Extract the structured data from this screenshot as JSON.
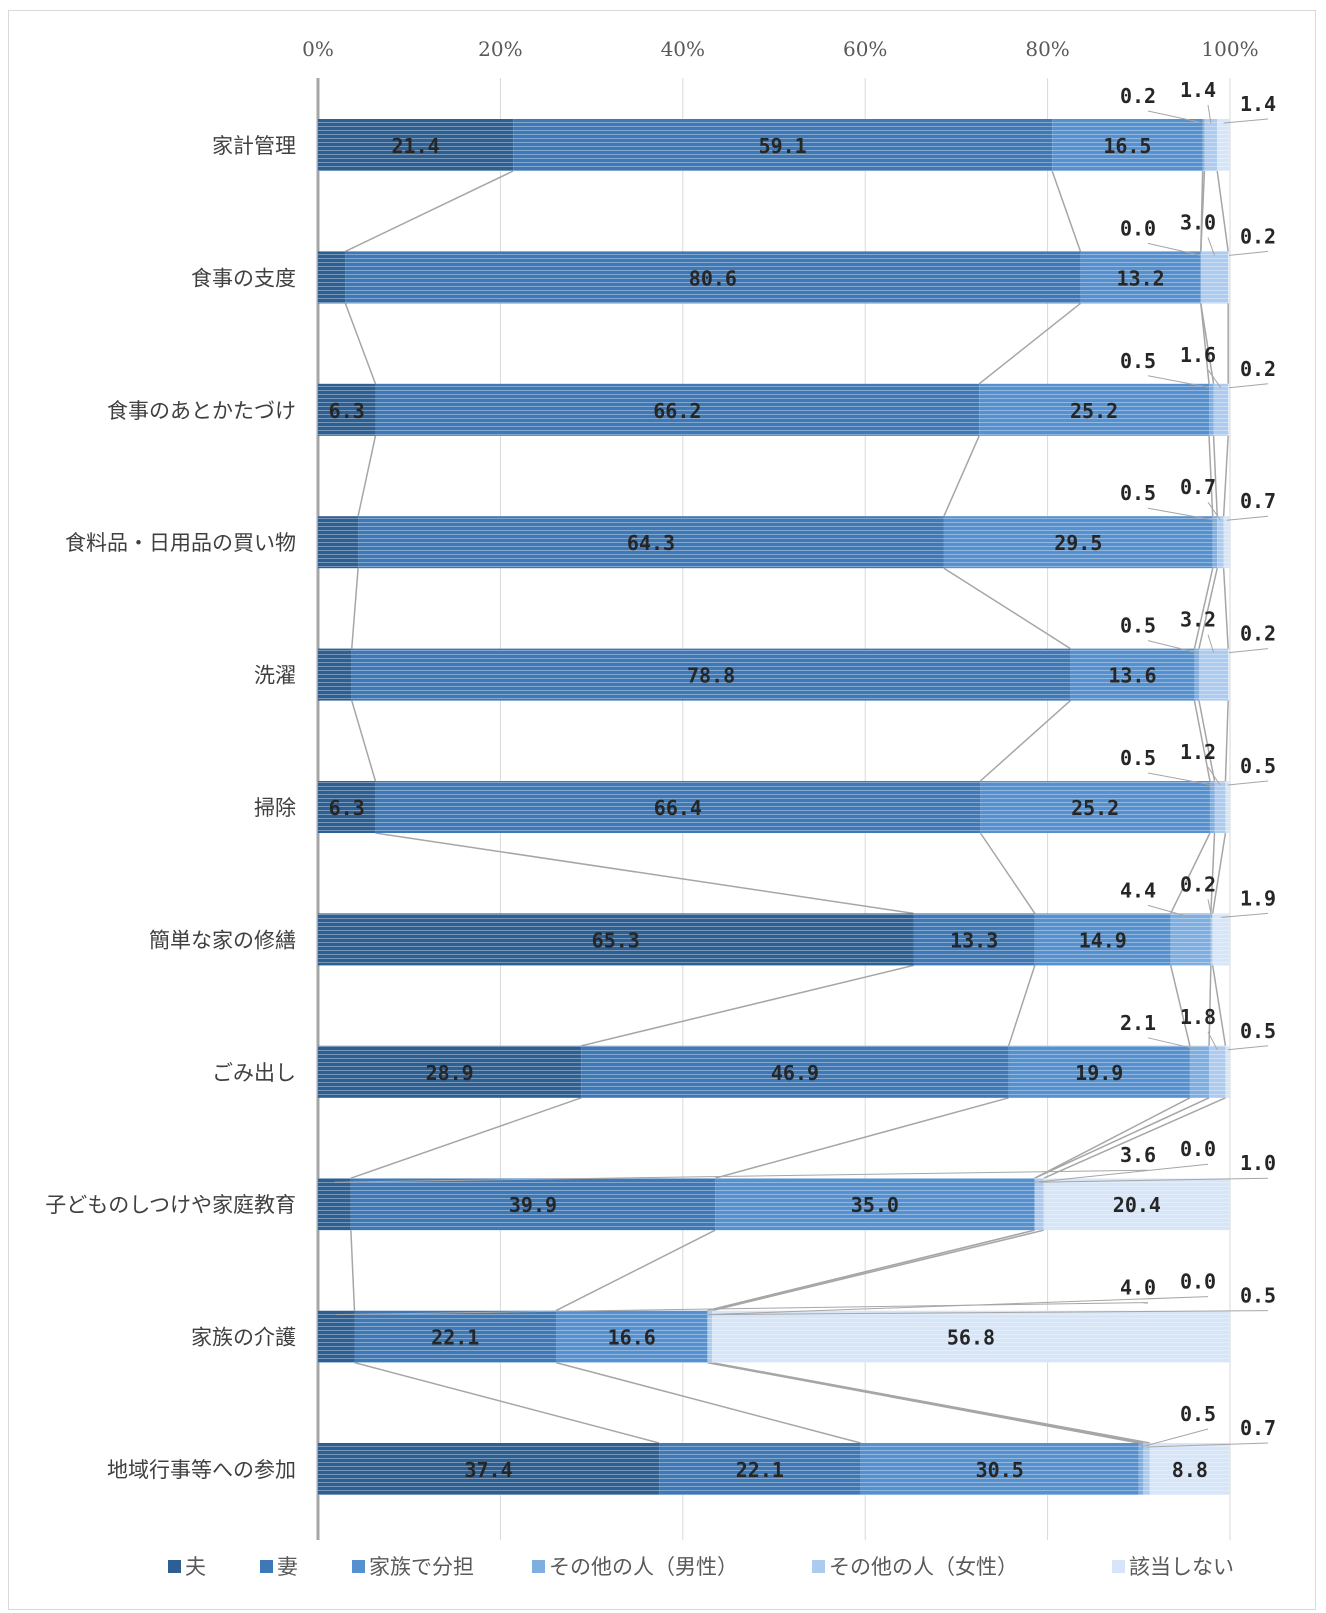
{
  "chart_data": {
    "type": "bar",
    "orientation": "horizontal",
    "stacked": "percent",
    "x_ticks": [
      "0%",
      "20%",
      "40%",
      "60%",
      "80%",
      "100%"
    ],
    "xlim": [
      0,
      100
    ],
    "grid": true,
    "legend_position": "bottom",
    "categories": [
      "家計管理",
      "食事の支度",
      "食事のあとかたづけ",
      "食料品・日用品の買い物",
      "洗濯",
      "掃除",
      "簡単な家の修繕",
      "ごみ出し",
      "子どものしつけや家庭教育",
      "家族の介護",
      "地域行事等への参加"
    ],
    "series": [
      {
        "name": "夫",
        "color": "#2E5F93",
        "values": [
          21.4,
          3.0,
          6.3,
          4.4,
          3.7,
          6.3,
          65.3,
          28.9,
          3.6,
          4.0,
          37.4
        ]
      },
      {
        "name": "妻",
        "color": "#3E78B6",
        "values": [
          59.1,
          80.6,
          66.2,
          64.3,
          78.8,
          66.4,
          13.3,
          46.9,
          39.9,
          22.1,
          22.1
        ]
      },
      {
        "name": "家族で分担",
        "color": "#5590D0",
        "values": [
          16.5,
          13.2,
          25.2,
          29.5,
          13.6,
          25.2,
          14.9,
          19.9,
          35.0,
          16.6,
          30.5
        ]
      },
      {
        "name": "その他の人（男性）",
        "color": "#7FAEE0",
        "values": [
          0.2,
          0.0,
          0.5,
          0.5,
          0.5,
          0.5,
          4.4,
          2.1,
          0.0,
          0.0,
          0.5
        ]
      },
      {
        "name": "その他の人（女性）",
        "color": "#ADCBEE",
        "values": [
          1.4,
          3.0,
          1.6,
          0.7,
          3.2,
          1.2,
          0.2,
          1.8,
          1.0,
          0.5,
          0.7
        ]
      },
      {
        "name": "該当しない",
        "color": "#D6E5F7",
        "values": [
          1.4,
          0.2,
          0.2,
          0.7,
          0.2,
          0.5,
          1.9,
          0.5,
          20.4,
          56.8,
          8.8
        ]
      }
    ],
    "value_labels": [
      [
        "21.4",
        "59.1",
        "16.5",
        "0.2",
        "1.4",
        "1.4"
      ],
      [
        "3.0",
        "80.6",
        "13.2",
        "0.0",
        "3.0",
        "0.2"
      ],
      [
        "6.3",
        "66.2",
        "25.2",
        "0.5",
        "1.6",
        "0.2"
      ],
      [
        "4.4",
        "64.3",
        "29.5",
        "0.5",
        "0.7",
        "0.7"
      ],
      [
        "3.7",
        "78.8",
        "13.6",
        "0.5",
        "3.2",
        "0.2"
      ],
      [
        "6.3",
        "66.4",
        "25.2",
        "0.5",
        "1.2",
        "0.5"
      ],
      [
        "65.3",
        "13.3",
        "14.9",
        "4.4",
        "0.2",
        "1.9"
      ],
      [
        "28.9",
        "46.9",
        "19.9",
        "2.1",
        "1.8",
        "0.5"
      ],
      [
        "3.6",
        "39.9",
        "35.0",
        "0.0",
        "1.0",
        "20.4"
      ],
      [
        "4.0",
        "22.1",
        "16.6",
        "0.0",
        "0.5",
        "56.8"
      ],
      [
        "37.4",
        "22.1",
        "30.5",
        "0.5",
        "0.7",
        "8.8"
      ]
    ]
  }
}
